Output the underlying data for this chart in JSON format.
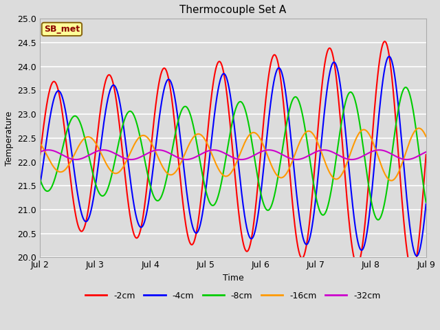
{
  "title": "Thermocouple Set A",
  "xlabel": "Time",
  "ylabel": "Temperature",
  "ylim": [
    20.0,
    25.0
  ],
  "yticks": [
    20.0,
    20.5,
    21.0,
    21.5,
    22.0,
    22.5,
    23.0,
    23.5,
    24.0,
    24.5,
    25.0
  ],
  "bg_color": "#dcdcdc",
  "plot_bg_color": "#dcdcdc",
  "grid_color": "#ffffff",
  "annotation_text": "SB_met",
  "annotation_bg": "#ffff99",
  "annotation_border": "#8B6914",
  "annotation_text_color": "#8B0000",
  "legend_labels": [
    "-2cm",
    "-4cm",
    "-8cm",
    "-16cm",
    "-32cm"
  ],
  "line_colors": [
    "#ff0000",
    "#0000ff",
    "#00cc00",
    "#ff9900",
    "#cc00cc"
  ],
  "line_widths": [
    1.5,
    1.5,
    1.5,
    1.5,
    1.5
  ],
  "start_day": 2,
  "end_day": 9,
  "num_points": 2000,
  "figsize": [
    6.4,
    4.8
  ],
  "dpi": 100
}
